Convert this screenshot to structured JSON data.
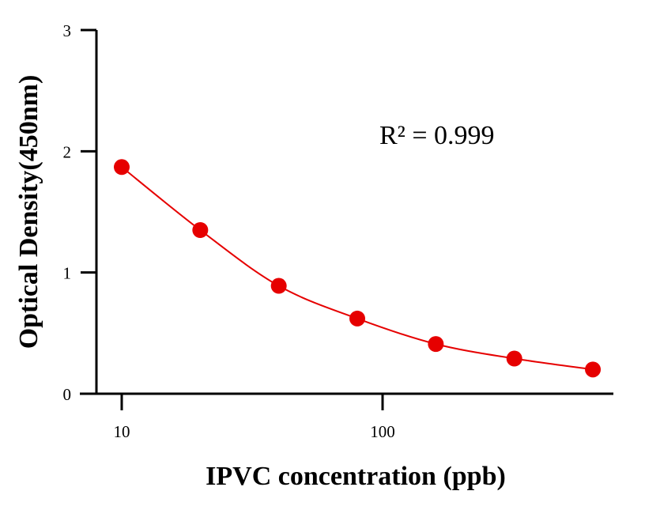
{
  "chart_data": {
    "type": "scatter",
    "x_scale": "log",
    "xlabel": "IPVC concentration (ppb)",
    "ylabel": "Optical Density(450nm)",
    "xlim": [
      8,
      750
    ],
    "ylim": [
      0,
      3
    ],
    "x_ticks": [
      10,
      100
    ],
    "x_tick_labels": [
      "10",
      "100"
    ],
    "y_ticks": [
      0,
      1,
      2,
      3
    ],
    "y_tick_labels": [
      "0",
      "1",
      "2",
      "3"
    ],
    "annotation": "R² = 0.999",
    "grid": false,
    "series": [
      {
        "points": [
          {
            "x": 10,
            "y": 1.87
          },
          {
            "x": 20,
            "y": 1.35
          },
          {
            "x": 40,
            "y": 0.89
          },
          {
            "x": 80,
            "y": 0.62
          },
          {
            "x": 160,
            "y": 0.41
          },
          {
            "x": 320,
            "y": 0.29
          },
          {
            "x": 640,
            "y": 0.2
          }
        ],
        "color": "#e60000",
        "fit_line": true
      }
    ]
  }
}
